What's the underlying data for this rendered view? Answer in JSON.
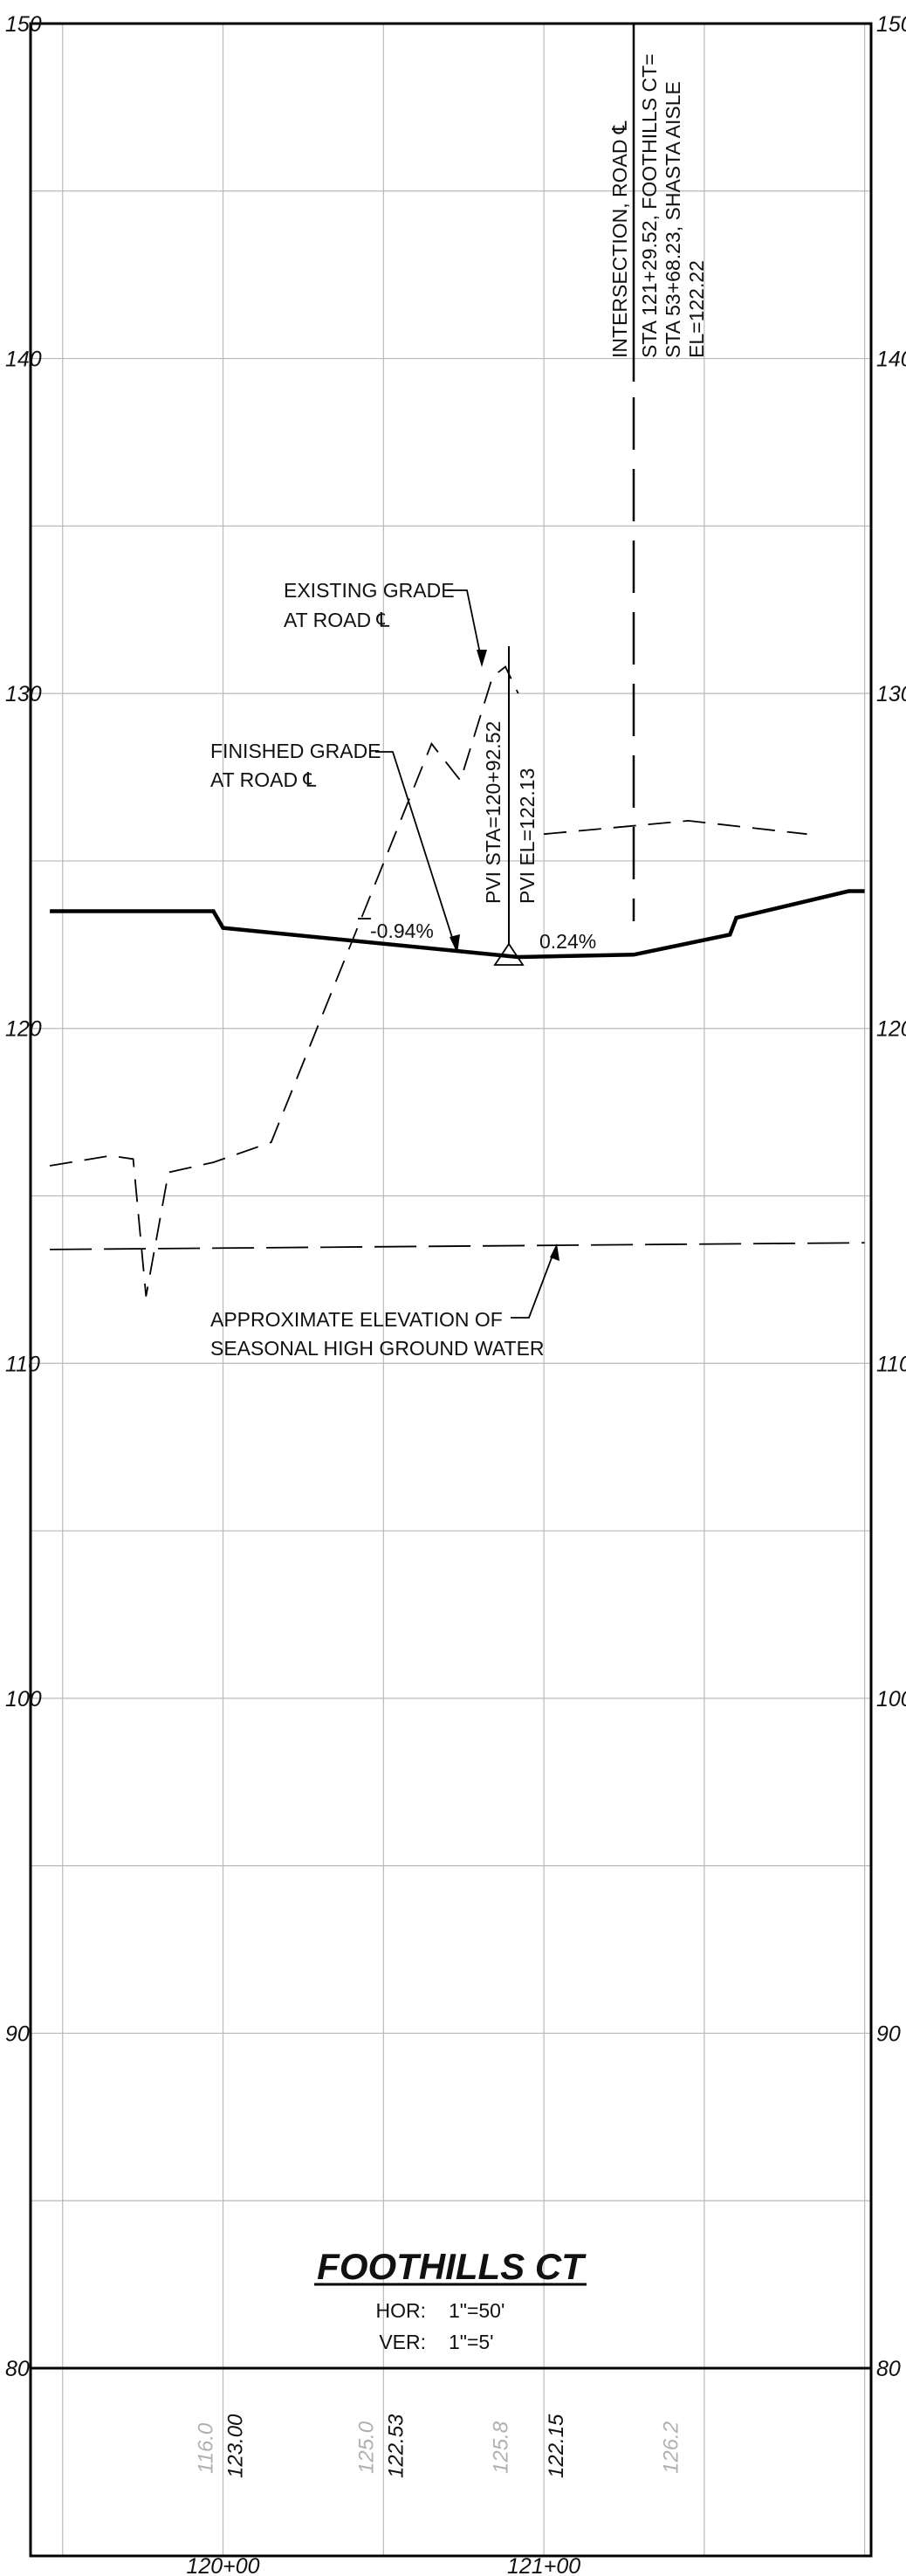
{
  "sheet": {
    "title": "FOOTHILLS CT",
    "scale_horizontal_label": "HOR:",
    "scale_horizontal_value": "1\"=50'",
    "scale_vertical_label": "VER:",
    "scale_vertical_value": "1\"=5'"
  },
  "axes": {
    "elevation_min": 80,
    "elevation_max": 150,
    "elevation_step": 5,
    "elevation_labels_left": [
      "150",
      "140",
      "130",
      "120",
      "110",
      "100",
      "90",
      "80"
    ],
    "elevation_labels_right": [
      "150",
      "140",
      "130",
      "120",
      "110",
      "100",
      "90",
      "80"
    ],
    "station_labels": [
      "120+00",
      "121+00"
    ]
  },
  "profile": {
    "existing_grade": [
      {
        "sta": 119.46,
        "el": 115.9
      },
      {
        "sta": 119.65,
        "el": 116.2
      },
      {
        "sta": 119.72,
        "el": 116.1
      },
      {
        "sta": 119.76,
        "el": 112.0
      },
      {
        "sta": 119.83,
        "el": 115.7
      },
      {
        "sta": 119.97,
        "el": 116.0
      },
      {
        "sta": 120.15,
        "el": 116.6
      },
      {
        "sta": 120.65,
        "el": 128.5
      },
      {
        "sta": 120.74,
        "el": 127.4
      },
      {
        "sta": 120.84,
        "el": 130.5
      },
      {
        "sta": 120.88,
        "el": 130.8
      },
      {
        "sta": 120.92,
        "el": 130.0
      }
    ],
    "existing_grade_east": [
      {
        "sta": 121.0,
        "el": 125.8
      },
      {
        "sta": 121.45,
        "el": 126.2
      },
      {
        "sta": 121.82,
        "el": 125.8
      }
    ],
    "finished_grade": [
      {
        "sta": 119.46,
        "el": 123.5
      },
      {
        "sta": 119.97,
        "el": 123.5
      },
      {
        "sta": 120.0,
        "el": 123.0
      },
      {
        "sta": 120.92,
        "el": 122.13
      },
      {
        "sta": 121.28,
        "el": 122.2
      },
      {
        "sta": 121.58,
        "el": 122.8
      },
      {
        "sta": 121.6,
        "el": 123.3
      },
      {
        "sta": 121.95,
        "el": 124.1
      },
      {
        "sta": 122.0,
        "el": 124.1
      }
    ],
    "ground_water": [
      {
        "sta": 119.46,
        "el": 113.4
      },
      {
        "sta": 122.0,
        "el": 113.6
      }
    ]
  },
  "annotations": {
    "existing_grade_line1": "EXISTING GRADE",
    "existing_grade_line2": "AT ROAD ℄",
    "finished_grade_line1": "FINISHED GRADE",
    "finished_grade_line2": "AT ROAD ℄",
    "slope_left": "-0.94%",
    "slope_right": "0.24%",
    "pvi_sta": "PVI STA=120+92.52",
    "pvi_el": "PVI EL=122.13",
    "intersection_line1": "INTERSECTION, ROAD ℄",
    "intersection_line2": "STA 121+29.52, FOOTHILLS CT=",
    "intersection_line3": "STA 53+68.23, SHASTA AISLE",
    "intersection_line4": "EL=122.22",
    "ground_water_line1": "APPROXIMATE ELEVATION OF",
    "ground_water_line2": "SEASONAL HIGH GROUND WATER"
  },
  "bottom_elevations": {
    "existing": [
      "116.0",
      "125.0",
      "125.8",
      "126.2"
    ],
    "finished": [
      "123.00",
      "122.53",
      "122.15"
    ]
  },
  "colors": {
    "line": "#000000",
    "grid": "#b9b9b9",
    "existing_text": "#b0b0b0"
  }
}
